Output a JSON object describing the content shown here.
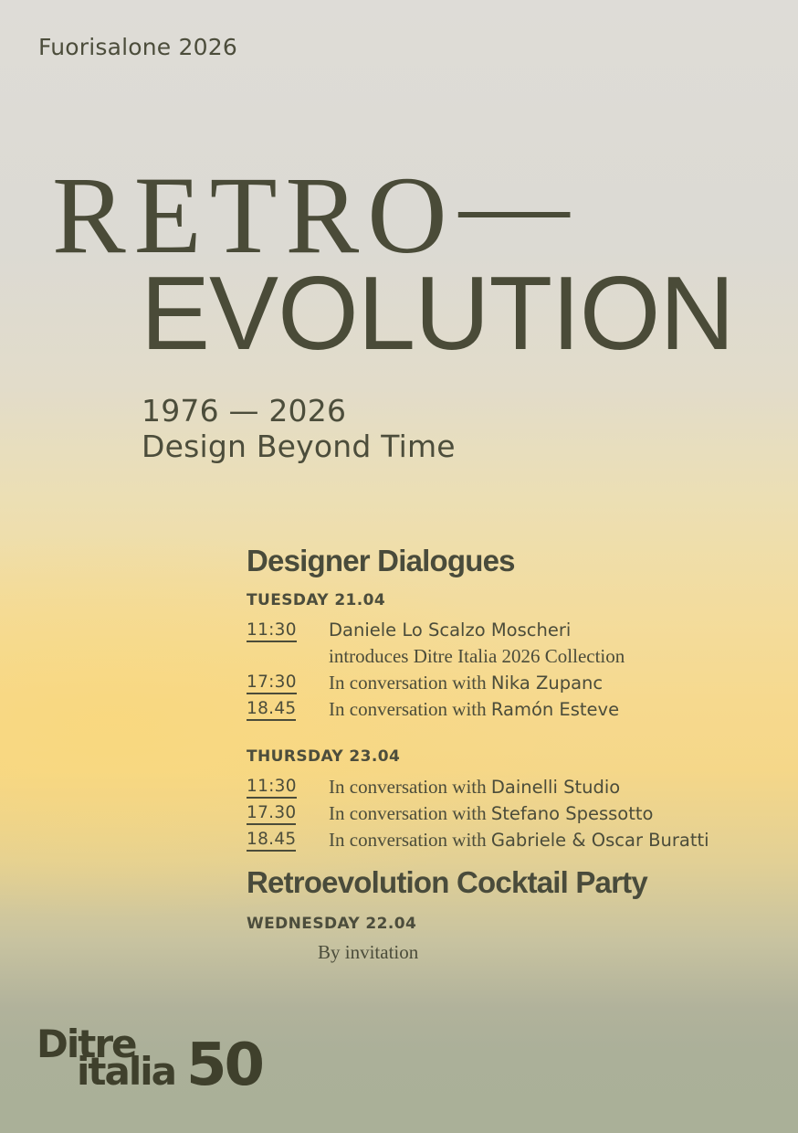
{
  "colors": {
    "background_top": "#dedcd7",
    "background_yellow": "#f6d98e",
    "background_bottom": "#aab098",
    "text": "#4b4c3a",
    "logo": "#3f402c"
  },
  "header": {
    "event_label": "Fuorisalone 2026"
  },
  "title": {
    "line1": "RETRO",
    "dash": "—",
    "line2": "EVOLUTION",
    "years": "1976 — 2026",
    "tagline": "Design Beyond Time"
  },
  "dialogues": {
    "heading": "Designer Dialogues",
    "days": [
      {
        "label": "TUESDAY 21.04",
        "events": [
          {
            "time": "11:30",
            "line1_sans": "Daniele Lo Scalzo Moscheri",
            "line2_serif": "introduces Ditre Italia 2026 Collection"
          },
          {
            "time": "17:30",
            "prefix_serif": "In conversation with ",
            "name_sans": "Nika Zupanc"
          },
          {
            "time": "18.45",
            "prefix_serif": "In conversation with ",
            "name_sans": "Ramón Esteve"
          }
        ]
      },
      {
        "label": "THURSDAY 23.04",
        "events": [
          {
            "time": "11:30",
            "prefix_serif": "In conversation with ",
            "name_sans": "Dainelli Studio"
          },
          {
            "time": "17.30",
            "prefix_serif": "In conversation with ",
            "name_sans": "Stefano Spessotto"
          },
          {
            "time": "18.45",
            "prefix_serif": "In conversation with ",
            "name_sans": "Gabriele & Oscar Buratti"
          }
        ]
      }
    ]
  },
  "cocktail": {
    "heading": "Retroevolution Cocktail Party",
    "day_label": "WEDNESDAY 22.04",
    "note": "By invitation"
  },
  "logo": {
    "line1": "Ditre",
    "line2": "italia",
    "anniversary": "50"
  }
}
